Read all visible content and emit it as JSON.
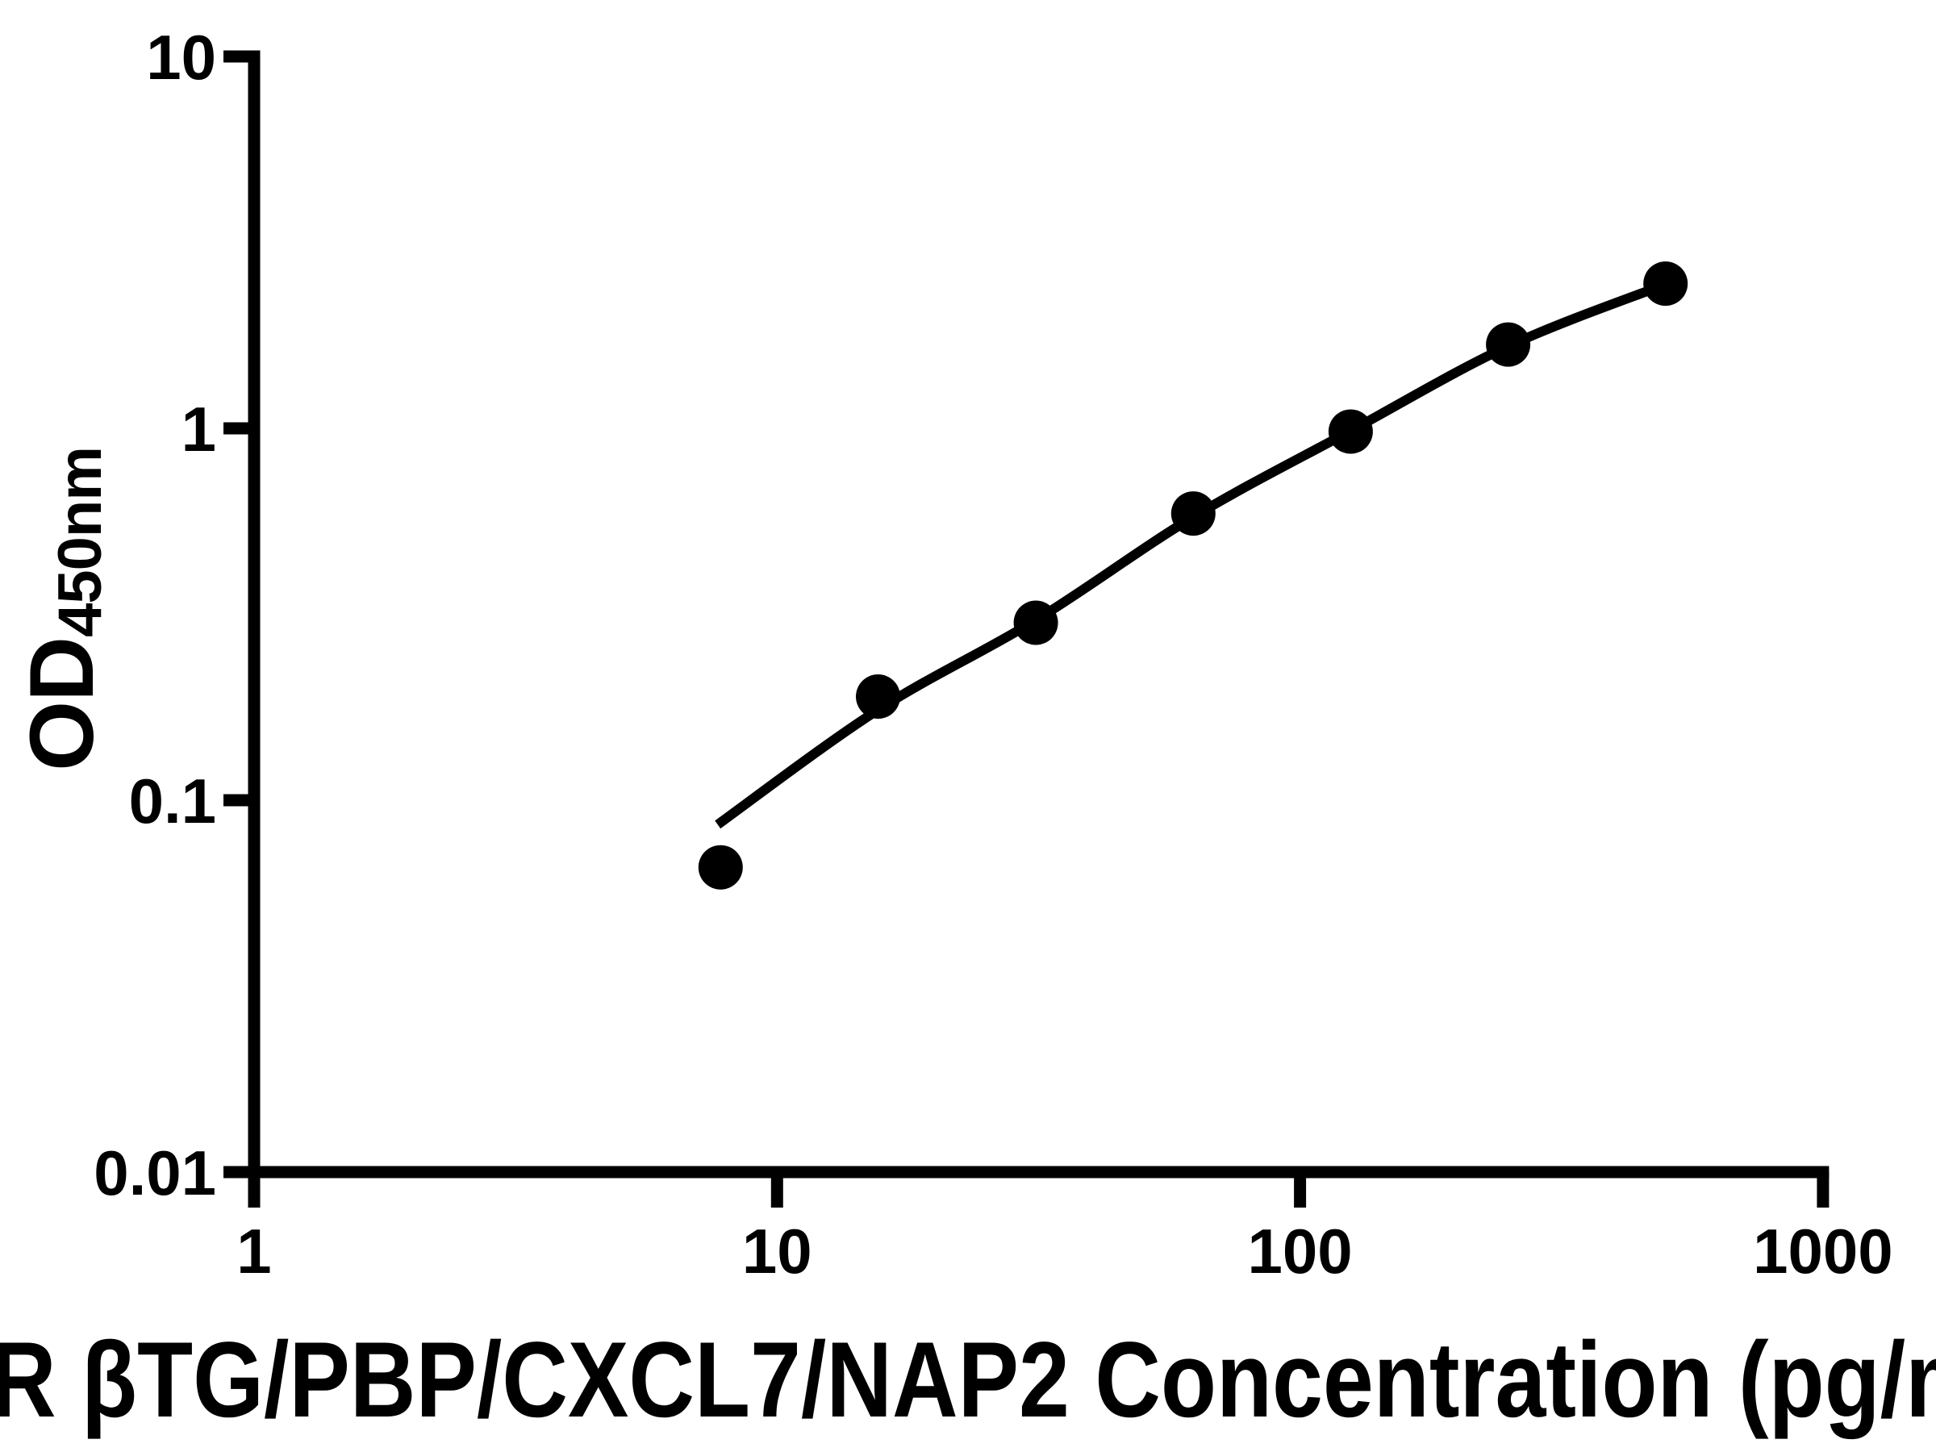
{
  "figure": {
    "background": "#ffffff",
    "foreground": "#000000"
  },
  "chart_data": {
    "type": "scatter",
    "title": "",
    "xlabel": "R βTG/PBP/CXCL7/NAP2 Concentration (pg/m",
    "ylabel_main": "OD",
    "ylabel_sub": "450nm",
    "x_scale": "log",
    "y_scale": "log",
    "xlim": [
      1,
      1000
    ],
    "ylim": [
      0.01,
      10
    ],
    "x_ticks": [
      {
        "value": 1,
        "label": "1"
      },
      {
        "value": 10,
        "label": "10"
      },
      {
        "value": 100,
        "label": "100"
      },
      {
        "value": 1000,
        "label": "1000"
      }
    ],
    "y_ticks": [
      {
        "value": 0.01,
        "label": "0.01"
      },
      {
        "value": 0.1,
        "label": "0.1"
      },
      {
        "value": 1,
        "label": "1"
      },
      {
        "value": 10,
        "label": "10"
      }
    ],
    "grid": false,
    "legend": "none",
    "marker_color": "#000000",
    "line_color": "#000000",
    "points": [
      {
        "x": 7.8,
        "od": 0.066
      },
      {
        "x": 15.6,
        "od": 0.19
      },
      {
        "x": 31.25,
        "od": 0.3
      },
      {
        "x": 62.5,
        "od": 0.59
      },
      {
        "x": 125,
        "od": 0.98
      },
      {
        "x": 250,
        "od": 1.68
      },
      {
        "x": 500,
        "od": 2.45
      }
    ],
    "fit_curve": [
      {
        "x": 7.7,
        "od": 0.086
      },
      {
        "x": 15.6,
        "od": 0.175
      },
      {
        "x": 31.25,
        "od": 0.305
      },
      {
        "x": 62.5,
        "od": 0.578
      },
      {
        "x": 125,
        "od": 0.985
      },
      {
        "x": 250,
        "od": 1.663
      },
      {
        "x": 500,
        "od": 2.44
      }
    ]
  }
}
